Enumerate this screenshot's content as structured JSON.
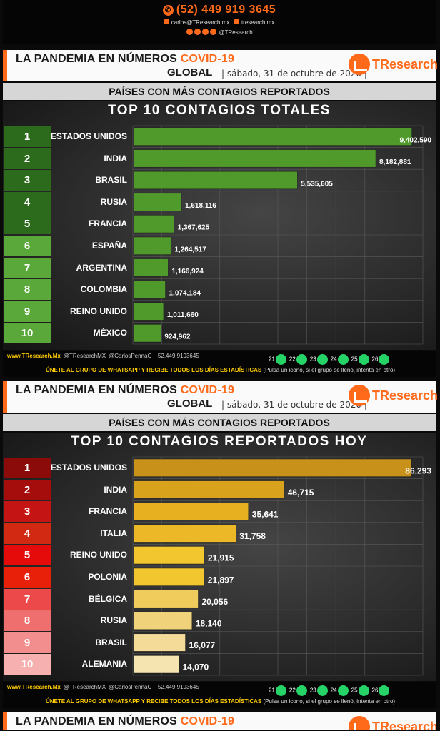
{
  "contact": {
    "phone": "(52) 449 919 3645",
    "email": "carlos@TResearch.mx",
    "website": "tresearch.mx",
    "social_handle": "@TResearch"
  },
  "header": {
    "title": "LA PANDEMIA EN NÚMEROS",
    "title_accent": "COVID-19",
    "scope": "GLOBAL",
    "date": "sábado, 31 de octubre de 2020",
    "logo_text": "TResearch"
  },
  "footer": {
    "site": "www.TResearch.Mx",
    "twitter": "@TResearchMX",
    "handle": "@CarlosPennaC",
    "whatsapp": "+52.449.9193645",
    "groups": [
      "21",
      "22",
      "23",
      "24",
      "25",
      "26"
    ],
    "cta": "ÚNETE AL GRUPO DE WHATSAPP Y RECIBE TODOS LOS DÍAS ESTADÍSTICAS",
    "cta_note": "(Pulsa un icono, si el grupo se llenó, intenta en otro)"
  },
  "panels": [
    {
      "subtitle": "PAÍSES CON MÁS CONTAGIOS REPORTADOS"
    },
    {
      "subtitle": "PAÍSES CON MÁS CONTAGIOS REPORTADOS"
    }
  ],
  "chart_data": [
    {
      "type": "bar",
      "orientation": "horizontal",
      "title": "TOP 10 CONTAGIOS TOTALES",
      "ranks": [
        "1",
        "2",
        "3",
        "4",
        "5",
        "6",
        "7",
        "8",
        "9",
        "10"
      ],
      "categories": [
        "ESTADOS UNIDOS",
        "INDIA",
        "BRASIL",
        "RUSIA",
        "FRANCIA",
        "ESPAÑA",
        "ARGENTINA",
        "COLOMBIA",
        "REINO UNIDO",
        "MÉXICO"
      ],
      "values": [
        9402590,
        8182881,
        5535605,
        1618116,
        1367625,
        1264517,
        1166924,
        1074184,
        1011660,
        924962
      ],
      "value_labels": [
        "9,402,590",
        "8,182,881",
        "5,535,605",
        "1,618,116",
        "1,367,625",
        "1,264,517",
        "1,166,924",
        "1,074,184",
        "1,011,660",
        "924,962"
      ],
      "xlim": [
        0,
        9800000
      ],
      "grid": true,
      "bar_color": "#4f9a2a",
      "rank_colors": [
        "#2d6b1c",
        "#2d6b1c",
        "#2d6b1c",
        "#2d6b1c",
        "#2d6b1c",
        "#5aa83a",
        "#5aa83a",
        "#5aa83a",
        "#5aa83a",
        "#5aa83a"
      ]
    },
    {
      "type": "bar",
      "orientation": "horizontal",
      "title": "TOP 10 CONTAGIOS REPORTADOS HOY",
      "ranks": [
        "1",
        "2",
        "3",
        "4",
        "5",
        "6",
        "7",
        "8",
        "9",
        "10"
      ],
      "categories": [
        "ESTADOS UNIDOS",
        "INDIA",
        "FRANCIA",
        "ITALIA",
        "REINO UNIDO",
        "POLONIA",
        "BÉLGICA",
        "RUSIA",
        "BRASIL",
        "ALEMANIA"
      ],
      "values": [
        86293,
        46715,
        35641,
        31758,
        21915,
        21897,
        20056,
        18140,
        16077,
        14070
      ],
      "value_labels": [
        "86,293",
        "46,715",
        "35,641",
        "31,758",
        "21,915",
        "21,897",
        "20,056",
        "18,140",
        "16,077",
        "14,070"
      ],
      "xlim": [
        0,
        90000
      ],
      "grid": true,
      "bar_colors": [
        "#c8921a",
        "#d9a21c",
        "#e7b020",
        "#ecb828",
        "#f2c62e",
        "#f2c62e",
        "#f0cc5c",
        "#f0d27a",
        "#f4dc98",
        "#f6e4b0"
      ],
      "rank_colors": [
        "#8b0a0a",
        "#a50d0d",
        "#c41414",
        "#d22a12",
        "#e60b0b",
        "#e8200a",
        "#ec4a4a",
        "#ef6e6e",
        "#f38e8e",
        "#f7b0b0"
      ]
    }
  ]
}
